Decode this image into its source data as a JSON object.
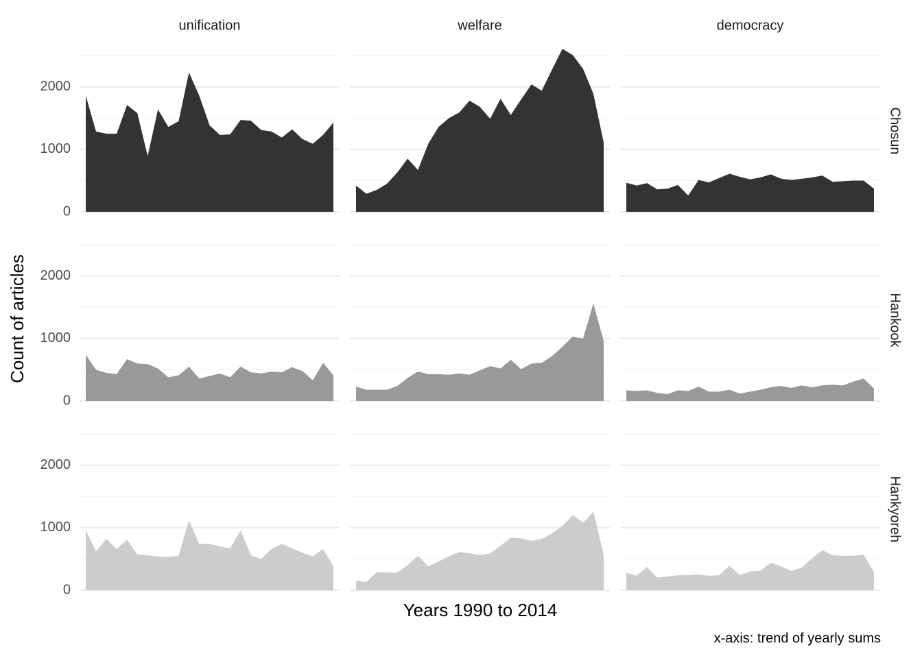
{
  "chart_data": {
    "type": "area",
    "x_label": "Years 1990 to 2014",
    "y_label": "Count of articles",
    "caption": "x-axis: trend of yearly sums",
    "columns": [
      "unification",
      "welfare",
      "democracy"
    ],
    "rows": [
      "Chosun",
      "Hankook",
      "Hankyoreh"
    ],
    "row_colors": [
      "#333333",
      "#999999",
      "#cccccc"
    ],
    "categories": [
      null,
      null,
      null,
      null,
      null,
      null,
      null,
      null,
      null,
      null,
      null,
      null,
      null,
      null,
      null,
      null,
      null,
      null,
      null,
      null,
      null,
      null,
      null,
      null,
      null
    ],
    "ylim": [
      0,
      2700
    ],
    "yticks": [
      0,
      1000,
      2000
    ],
    "minor_yticks": [
      500,
      1500,
      2500
    ],
    "grid": true,
    "panels": [
      [
        {
          "values": [
            1860,
            1285,
            1250,
            1250,
            1710,
            1580,
            890,
            1640,
            1360,
            1450,
            2230,
            1860,
            1385,
            1230,
            1240,
            1470,
            1460,
            1310,
            1285,
            1190,
            1320,
            1165,
            1090,
            1230,
            1430
          ]
        },
        {
          "values": [
            420,
            290,
            350,
            450,
            630,
            850,
            670,
            1090,
            1360,
            1500,
            1590,
            1780,
            1680,
            1490,
            1810,
            1550,
            1800,
            2040,
            1940,
            2280,
            2610,
            2510,
            2290,
            1890,
            1110
          ]
        },
        {
          "values": [
            465,
            420,
            460,
            360,
            370,
            430,
            260,
            510,
            470,
            540,
            610,
            560,
            520,
            550,
            600,
            530,
            510,
            530,
            550,
            580,
            480,
            490,
            500,
            500,
            370
          ]
        }
      ],
      [
        {
          "values": [
            740,
            500,
            450,
            430,
            670,
            600,
            590,
            520,
            380,
            410,
            550,
            360,
            400,
            440,
            380,
            550,
            460,
            440,
            470,
            460,
            540,
            480,
            330,
            610,
            410
          ]
        },
        {
          "values": [
            230,
            180,
            180,
            180,
            240,
            370,
            470,
            430,
            430,
            420,
            440,
            420,
            490,
            560,
            520,
            660,
            510,
            600,
            610,
            720,
            870,
            1030,
            1000,
            1560,
            960
          ]
        },
        {
          "values": [
            170,
            160,
            170,
            130,
            110,
            170,
            160,
            230,
            150,
            150,
            180,
            120,
            150,
            180,
            220,
            240,
            210,
            250,
            220,
            250,
            260,
            250,
            310,
            360,
            200
          ]
        }
      ],
      [
        {
          "values": [
            960,
            620,
            820,
            660,
            810,
            570,
            560,
            540,
            530,
            550,
            1120,
            740,
            740,
            700,
            670,
            960,
            560,
            500,
            660,
            740,
            670,
            600,
            540,
            660,
            380
          ]
        },
        {
          "values": [
            150,
            130,
            290,
            280,
            280,
            400,
            550,
            380,
            460,
            540,
            610,
            590,
            560,
            590,
            710,
            840,
            830,
            790,
            820,
            910,
            1030,
            1200,
            1080,
            1260,
            570
          ]
        },
        {
          "values": [
            280,
            230,
            370,
            200,
            220,
            240,
            240,
            250,
            230,
            240,
            390,
            240,
            300,
            310,
            440,
            380,
            310,
            360,
            510,
            640,
            560,
            550,
            550,
            570,
            290
          ]
        }
      ]
    ]
  }
}
